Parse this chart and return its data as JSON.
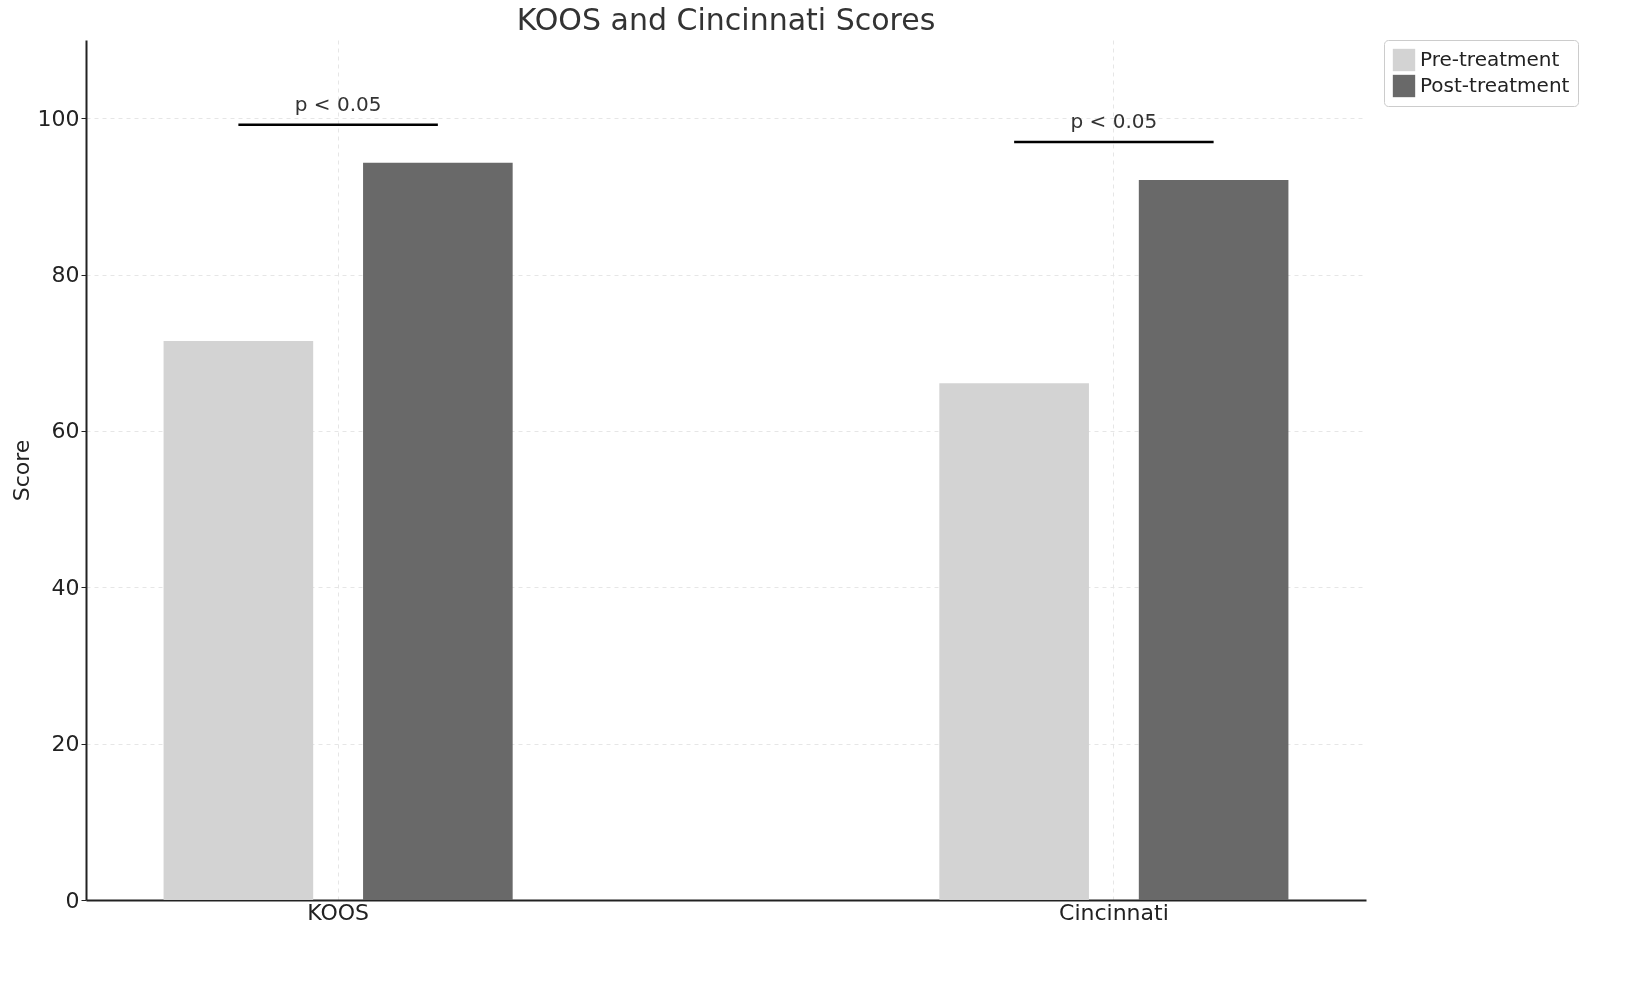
{
  "chart_data": {
    "type": "bar",
    "title": "KOOS and Cincinnati Scores",
    "ylabel": "Score",
    "categories": [
      "KOOS",
      "Cincinnati"
    ],
    "series": [
      {
        "name": "Pre-treatment",
        "color": "#d3d3d3",
        "values": [
          71.5,
          66.1
        ]
      },
      {
        "name": "Post-treatment",
        "color": "#696969",
        "values": [
          94.3,
          92.1
        ]
      }
    ],
    "ylim": [
      0,
      110
    ],
    "yticks": [
      0,
      20,
      40,
      60,
      80,
      100
    ],
    "grid": true,
    "legend": "top right",
    "annotations": [
      "p < 0.05",
      "p < 0.05"
    ]
  }
}
